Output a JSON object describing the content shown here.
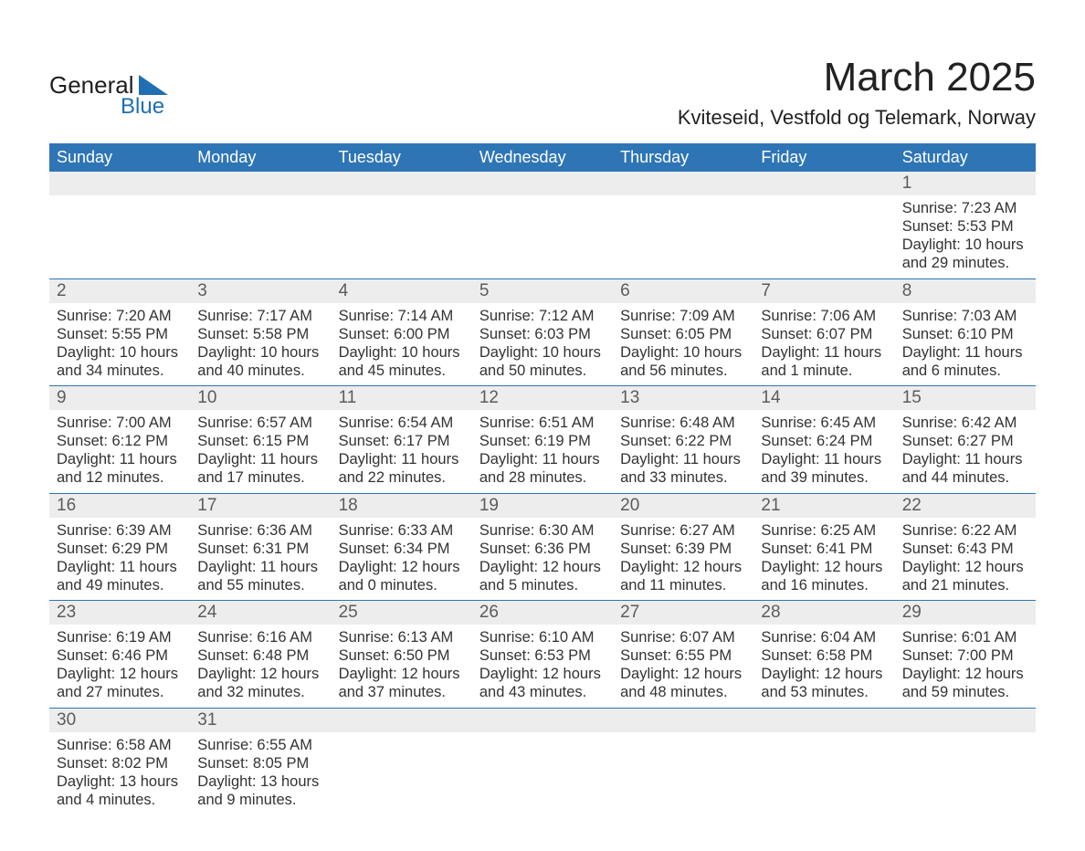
{
  "brand": {
    "name_a": "General",
    "name_b": "Blue",
    "text_color": "#1f1f1f",
    "accent_color": "#1f6fb2",
    "triangle_color": "#1f6fb2"
  },
  "title": "March 2025",
  "location": "Kviteseid, Vestfold og Telemark, Norway",
  "header_bg": "#2e75b6",
  "daynum_bg": "#ededed",
  "row_divider_color": "#2e75b6",
  "day_headers": [
    "Sunday",
    "Monday",
    "Tuesday",
    "Wednesday",
    "Thursday",
    "Friday",
    "Saturday"
  ],
  "weeks": [
    [
      null,
      null,
      null,
      null,
      null,
      null,
      {
        "n": "1",
        "sr": "Sunrise: 7:23 AM",
        "ss": "Sunset: 5:53 PM",
        "dl": "Daylight: 10 hours and 29 minutes."
      }
    ],
    [
      {
        "n": "2",
        "sr": "Sunrise: 7:20 AM",
        "ss": "Sunset: 5:55 PM",
        "dl": "Daylight: 10 hours and 34 minutes."
      },
      {
        "n": "3",
        "sr": "Sunrise: 7:17 AM",
        "ss": "Sunset: 5:58 PM",
        "dl": "Daylight: 10 hours and 40 minutes."
      },
      {
        "n": "4",
        "sr": "Sunrise: 7:14 AM",
        "ss": "Sunset: 6:00 PM",
        "dl": "Daylight: 10 hours and 45 minutes."
      },
      {
        "n": "5",
        "sr": "Sunrise: 7:12 AM",
        "ss": "Sunset: 6:03 PM",
        "dl": "Daylight: 10 hours and 50 minutes."
      },
      {
        "n": "6",
        "sr": "Sunrise: 7:09 AM",
        "ss": "Sunset: 6:05 PM",
        "dl": "Daylight: 10 hours and 56 minutes."
      },
      {
        "n": "7",
        "sr": "Sunrise: 7:06 AM",
        "ss": "Sunset: 6:07 PM",
        "dl": "Daylight: 11 hours and 1 minute."
      },
      {
        "n": "8",
        "sr": "Sunrise: 7:03 AM",
        "ss": "Sunset: 6:10 PM",
        "dl": "Daylight: 11 hours and 6 minutes."
      }
    ],
    [
      {
        "n": "9",
        "sr": "Sunrise: 7:00 AM",
        "ss": "Sunset: 6:12 PM",
        "dl": "Daylight: 11 hours and 12 minutes."
      },
      {
        "n": "10",
        "sr": "Sunrise: 6:57 AM",
        "ss": "Sunset: 6:15 PM",
        "dl": "Daylight: 11 hours and 17 minutes."
      },
      {
        "n": "11",
        "sr": "Sunrise: 6:54 AM",
        "ss": "Sunset: 6:17 PM",
        "dl": "Daylight: 11 hours and 22 minutes."
      },
      {
        "n": "12",
        "sr": "Sunrise: 6:51 AM",
        "ss": "Sunset: 6:19 PM",
        "dl": "Daylight: 11 hours and 28 minutes."
      },
      {
        "n": "13",
        "sr": "Sunrise: 6:48 AM",
        "ss": "Sunset: 6:22 PM",
        "dl": "Daylight: 11 hours and 33 minutes."
      },
      {
        "n": "14",
        "sr": "Sunrise: 6:45 AM",
        "ss": "Sunset: 6:24 PM",
        "dl": "Daylight: 11 hours and 39 minutes."
      },
      {
        "n": "15",
        "sr": "Sunrise: 6:42 AM",
        "ss": "Sunset: 6:27 PM",
        "dl": "Daylight: 11 hours and 44 minutes."
      }
    ],
    [
      {
        "n": "16",
        "sr": "Sunrise: 6:39 AM",
        "ss": "Sunset: 6:29 PM",
        "dl": "Daylight: 11 hours and 49 minutes."
      },
      {
        "n": "17",
        "sr": "Sunrise: 6:36 AM",
        "ss": "Sunset: 6:31 PM",
        "dl": "Daylight: 11 hours and 55 minutes."
      },
      {
        "n": "18",
        "sr": "Sunrise: 6:33 AM",
        "ss": "Sunset: 6:34 PM",
        "dl": "Daylight: 12 hours and 0 minutes."
      },
      {
        "n": "19",
        "sr": "Sunrise: 6:30 AM",
        "ss": "Sunset: 6:36 PM",
        "dl": "Daylight: 12 hours and 5 minutes."
      },
      {
        "n": "20",
        "sr": "Sunrise: 6:27 AM",
        "ss": "Sunset: 6:39 PM",
        "dl": "Daylight: 12 hours and 11 minutes."
      },
      {
        "n": "21",
        "sr": "Sunrise: 6:25 AM",
        "ss": "Sunset: 6:41 PM",
        "dl": "Daylight: 12 hours and 16 minutes."
      },
      {
        "n": "22",
        "sr": "Sunrise: 6:22 AM",
        "ss": "Sunset: 6:43 PM",
        "dl": "Daylight: 12 hours and 21 minutes."
      }
    ],
    [
      {
        "n": "23",
        "sr": "Sunrise: 6:19 AM",
        "ss": "Sunset: 6:46 PM",
        "dl": "Daylight: 12 hours and 27 minutes."
      },
      {
        "n": "24",
        "sr": "Sunrise: 6:16 AM",
        "ss": "Sunset: 6:48 PM",
        "dl": "Daylight: 12 hours and 32 minutes."
      },
      {
        "n": "25",
        "sr": "Sunrise: 6:13 AM",
        "ss": "Sunset: 6:50 PM",
        "dl": "Daylight: 12 hours and 37 minutes."
      },
      {
        "n": "26",
        "sr": "Sunrise: 6:10 AM",
        "ss": "Sunset: 6:53 PM",
        "dl": "Daylight: 12 hours and 43 minutes."
      },
      {
        "n": "27",
        "sr": "Sunrise: 6:07 AM",
        "ss": "Sunset: 6:55 PM",
        "dl": "Daylight: 12 hours and 48 minutes."
      },
      {
        "n": "28",
        "sr": "Sunrise: 6:04 AM",
        "ss": "Sunset: 6:58 PM",
        "dl": "Daylight: 12 hours and 53 minutes."
      },
      {
        "n": "29",
        "sr": "Sunrise: 6:01 AM",
        "ss": "Sunset: 7:00 PM",
        "dl": "Daylight: 12 hours and 59 minutes."
      }
    ],
    [
      {
        "n": "30",
        "sr": "Sunrise: 6:58 AM",
        "ss": "Sunset: 8:02 PM",
        "dl": "Daylight: 13 hours and 4 minutes."
      },
      {
        "n": "31",
        "sr": "Sunrise: 6:55 AM",
        "ss": "Sunset: 8:05 PM",
        "dl": "Daylight: 13 hours and 9 minutes."
      },
      null,
      null,
      null,
      null,
      null
    ]
  ]
}
